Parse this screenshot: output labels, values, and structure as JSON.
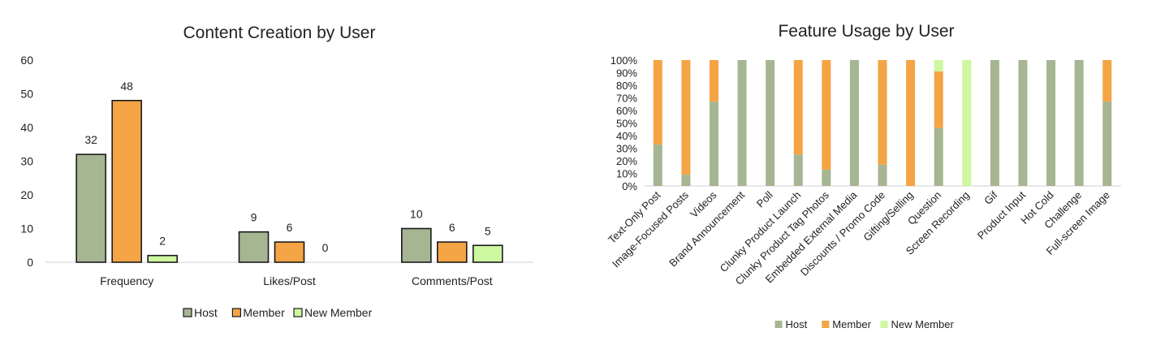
{
  "chart_data": [
    {
      "type": "bar",
      "title": "Content Creation by User",
      "categories": [
        "Frequency",
        "Likes/Post",
        "Comments/Post"
      ],
      "series": [
        {
          "name": "Host",
          "values": [
            32,
            9,
            10
          ],
          "color": "#a6b592"
        },
        {
          "name": "Member",
          "values": [
            48,
            6,
            6
          ],
          "color": "#f4a444"
        },
        {
          "name": "New Member",
          "values": [
            2,
            0,
            5
          ],
          "color": "#cdf7a0"
        }
      ],
      "ylim": [
        0,
        60
      ],
      "yticks": [
        0,
        10,
        20,
        30,
        40,
        50,
        60
      ],
      "data_labels": true,
      "legend_position": "bottom",
      "grid": false
    },
    {
      "type": "bar",
      "stacked": "percent",
      "title": "Feature Usage by User",
      "categories": [
        "Text-Only Post",
        "Image-Focused Posts",
        "Videos",
        "Brand Announcement",
        "Poll",
        "Clunky Product Launch",
        "Clunky Product Tag Photos",
        "Embedded External Media",
        "Discounts / Promo Code",
        "Gifting/Selling",
        "Question",
        "Screen Recording",
        "Gif",
        "Product Input",
        "Hot Cold",
        "Challenge",
        "Full-screen Image"
      ],
      "series": [
        {
          "name": "Host",
          "values": [
            33,
            9,
            67,
            100,
            100,
            25,
            13,
            100,
            17,
            0,
            46,
            0,
            100,
            100,
            100,
            100,
            67
          ],
          "color": "#a6b592"
        },
        {
          "name": "Member",
          "values": [
            67,
            91,
            33,
            0,
            0,
            75,
            87,
            0,
            83,
            100,
            45,
            0,
            0,
            0,
            0,
            0,
            33
          ],
          "color": "#f4a444"
        },
        {
          "name": "New Member",
          "values": [
            0,
            0,
            0,
            0,
            0,
            0,
            0,
            0,
            0,
            0,
            9,
            100,
            0,
            0,
            0,
            0,
            0
          ],
          "color": "#cdf7a0"
        }
      ],
      "ylim": [
        0,
        100
      ],
      "yticks": [
        "0%",
        "10%",
        "20%",
        "30%",
        "40%",
        "50%",
        "60%",
        "70%",
        "80%",
        "90%",
        "100%"
      ],
      "legend_position": "bottom",
      "grid": false
    }
  ]
}
